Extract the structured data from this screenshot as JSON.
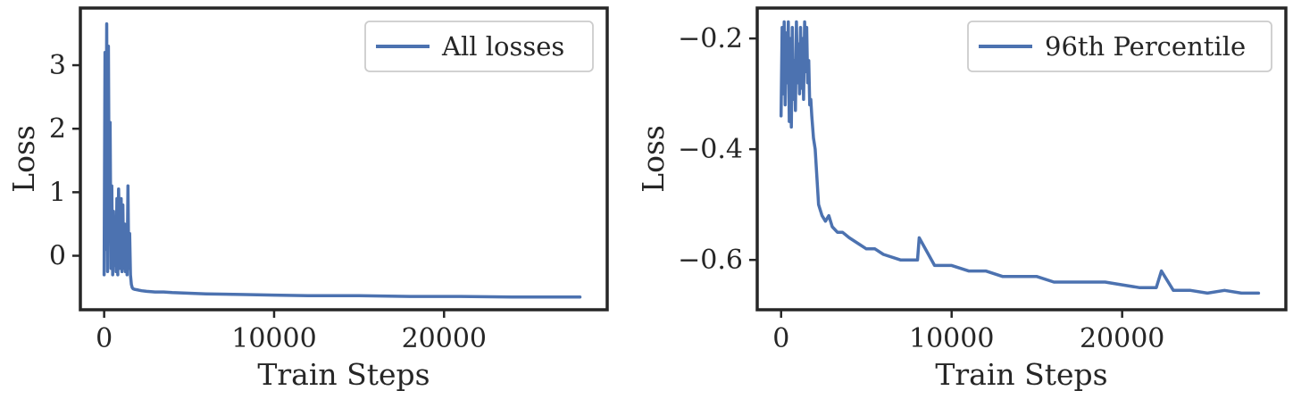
{
  "chart_data": [
    {
      "type": "line",
      "xlabel": "Train Steps",
      "ylabel": "Loss",
      "xlim": [
        -1400,
        29600
      ],
      "ylim": [
        -0.85,
        3.9
      ],
      "xticks": [
        0,
        10000,
        20000
      ],
      "xtick_labels": [
        "0",
        "10000",
        "20000"
      ],
      "yticks": [
        0,
        1,
        2,
        3
      ],
      "ytick_labels": [
        "0",
        "1",
        "2",
        "3"
      ],
      "legend_position": "top-right",
      "grid": false,
      "series": [
        {
          "name": "All losses",
          "color": "#4c72b0",
          "x": [
            0,
            50,
            100,
            150,
            200,
            250,
            300,
            350,
            400,
            450,
            500,
            550,
            600,
            650,
            700,
            750,
            800,
            850,
            900,
            950,
            1000,
            1050,
            1100,
            1150,
            1200,
            1250,
            1300,
            1350,
            1400,
            1450,
            1500,
            1550,
            1600,
            1650,
            1700,
            1800,
            2000,
            2200,
            2500,
            3000,
            3500,
            4000,
            5000,
            6000,
            8000,
            10000,
            12000,
            15000,
            18000,
            21000,
            24000,
            26000,
            28000
          ],
          "y": [
            -0.3,
            3.2,
            0.1,
            3.65,
            -0.25,
            3.3,
            0.5,
            2.1,
            -0.2,
            1.1,
            -0.3,
            0.7,
            -0.15,
            0.6,
            -0.25,
            0.9,
            -0.3,
            1.05,
            0.4,
            -0.2,
            0.9,
            -0.25,
            0.8,
            -0.2,
            0.5,
            -0.25,
            0.45,
            -0.3,
            1.1,
            -0.2,
            0.35,
            -0.3,
            -0.45,
            -0.5,
            -0.52,
            -0.53,
            -0.54,
            -0.55,
            -0.56,
            -0.57,
            -0.57,
            -0.58,
            -0.59,
            -0.6,
            -0.61,
            -0.62,
            -0.63,
            -0.63,
            -0.64,
            -0.64,
            -0.65,
            -0.65,
            -0.65
          ]
        }
      ]
    },
    {
      "type": "line",
      "xlabel": "Train Steps",
      "ylabel": "Loss",
      "xlim": [
        -1400,
        29600
      ],
      "ylim": [
        -0.69,
        -0.145
      ],
      "xticks": [
        0,
        10000,
        20000
      ],
      "xtick_labels": [
        "0",
        "10000",
        "20000"
      ],
      "yticks": [
        -0.6,
        -0.4,
        -0.2
      ],
      "ytick_labels": [
        "−0.6",
        "−0.4",
        "−0.2"
      ],
      "legend_position": "top-right",
      "grid": false,
      "series": [
        {
          "name": "96th Percentile",
          "color": "#4c72b0",
          "x": [
            0,
            60,
            120,
            180,
            240,
            300,
            360,
            420,
            480,
            540,
            600,
            660,
            720,
            780,
            840,
            900,
            960,
            1020,
            1080,
            1140,
            1200,
            1260,
            1320,
            1380,
            1440,
            1500,
            1560,
            1620,
            1680,
            1740,
            1800,
            1900,
            2000,
            2100,
            2200,
            2400,
            2600,
            2800,
            3000,
            3300,
            3600,
            4000,
            4500,
            5000,
            5500,
            6000,
            7000,
            8000,
            8100,
            9000,
            10000,
            11000,
            12000,
            13000,
            14000,
            15000,
            16000,
            17000,
            18000,
            19000,
            20000,
            21000,
            22000,
            22300,
            23000,
            24000,
            25000,
            26000,
            27000,
            28000
          ],
          "y": [
            -0.34,
            -0.18,
            -0.3,
            -0.17,
            -0.32,
            -0.19,
            -0.28,
            -0.17,
            -0.35,
            -0.2,
            -0.36,
            -0.18,
            -0.31,
            -0.24,
            -0.33,
            -0.17,
            -0.28,
            -0.21,
            -0.3,
            -0.18,
            -0.29,
            -0.2,
            -0.31,
            -0.17,
            -0.26,
            -0.18,
            -0.28,
            -0.24,
            -0.32,
            -0.31,
            -0.34,
            -0.38,
            -0.4,
            -0.45,
            -0.5,
            -0.52,
            -0.53,
            -0.52,
            -0.54,
            -0.55,
            -0.55,
            -0.56,
            -0.57,
            -0.58,
            -0.58,
            -0.59,
            -0.6,
            -0.6,
            -0.56,
            -0.61,
            -0.61,
            -0.62,
            -0.62,
            -0.63,
            -0.63,
            -0.63,
            -0.64,
            -0.64,
            -0.64,
            -0.64,
            -0.645,
            -0.65,
            -0.65,
            -0.62,
            -0.655,
            -0.655,
            -0.66,
            -0.655,
            -0.66,
            -0.66
          ]
        }
      ]
    }
  ]
}
